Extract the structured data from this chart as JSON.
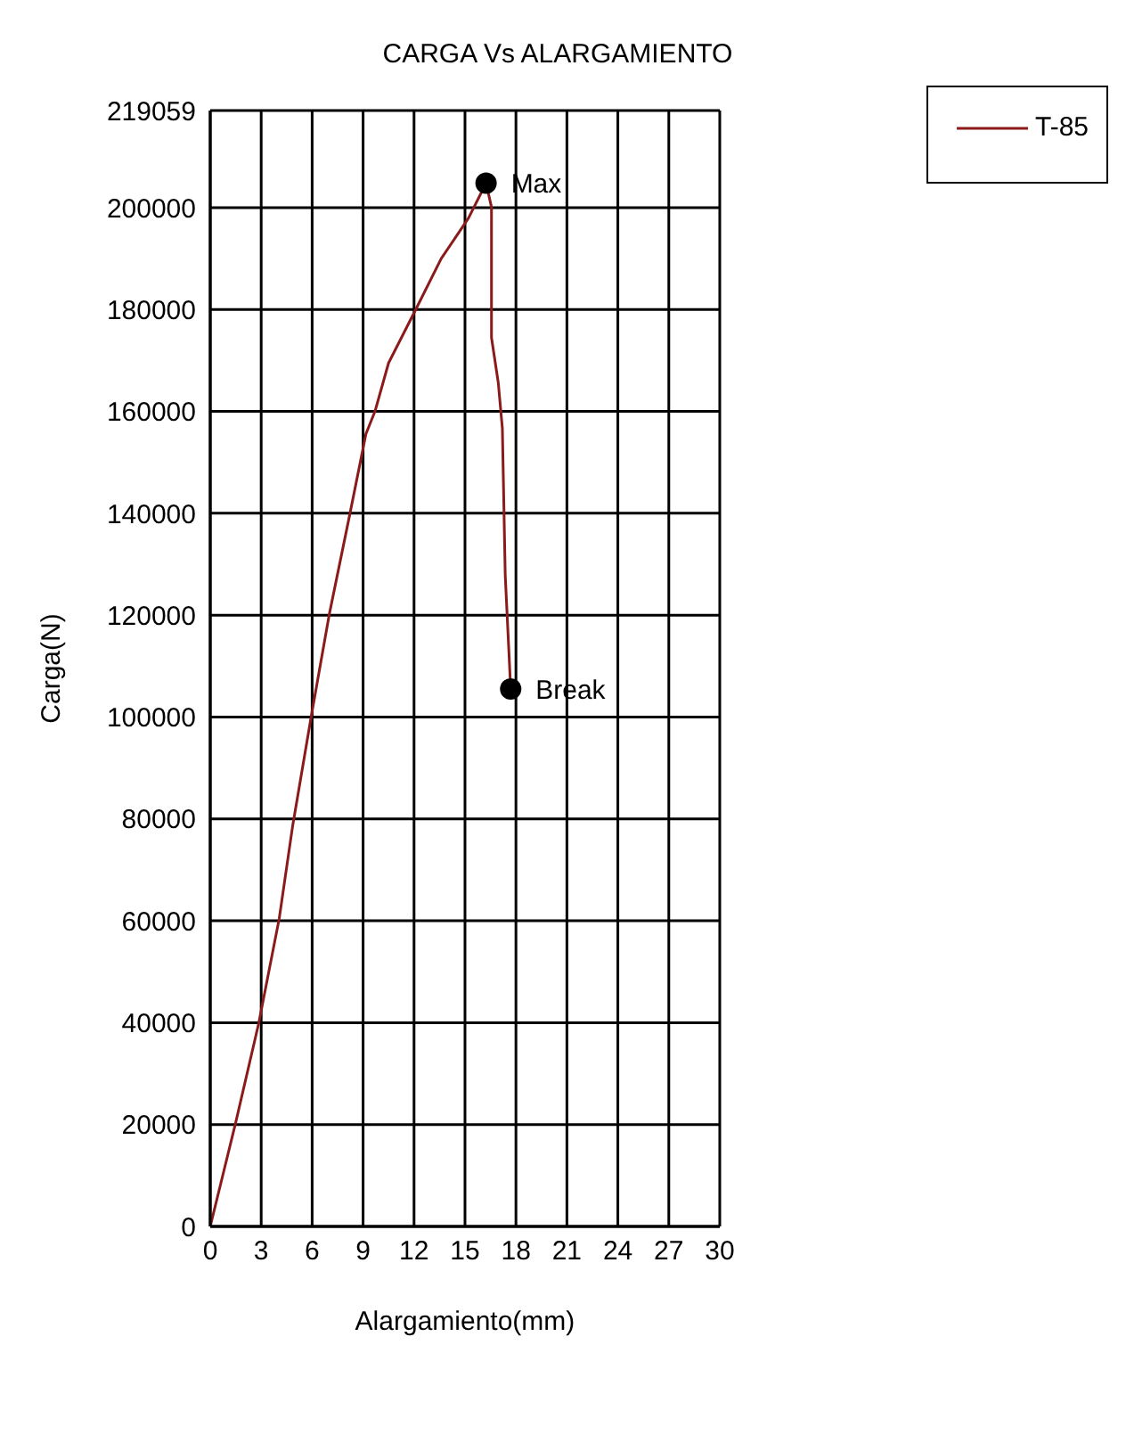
{
  "chart_data": {
    "type": "line",
    "title": "CARGA Vs ALARGAMIENTO",
    "xlabel": "Alargamiento(mm)",
    "ylabel": "Carga(N)",
    "xlim": [
      0,
      30
    ],
    "xticks": [
      0,
      3,
      6,
      9,
      12,
      15,
      18,
      21,
      24,
      27,
      30
    ],
    "ylim": [
      0,
      219059
    ],
    "yticks": [
      0,
      20000,
      40000,
      60000,
      80000,
      100000,
      120000,
      140000,
      160000,
      180000,
      200000,
      219059
    ],
    "grid": true,
    "legend": "top right",
    "marker": "none",
    "line_style": "solid",
    "series": [
      {
        "name": "T-85",
        "color": "#8b1a1a",
        "x": [
          0,
          1.5,
          2.85,
          4.06,
          4.86,
          5.94,
          7.0,
          8.23,
          9.17,
          9.7,
          10.5,
          12.1,
          13.6,
          15.2,
          16.24,
          16.56,
          16.56,
          16.96,
          17.2,
          17.37,
          17.69
        ],
        "values": [
          0,
          20400,
          39800,
          60400,
          78800,
          100000,
          120000,
          140000,
          155600,
          160000,
          169500,
          180000,
          190000,
          197900,
          204800,
          200100,
          174500,
          165600,
          156700,
          127800,
          105500
        ]
      }
    ],
    "annotations": [
      {
        "text": "Max",
        "x": 16.24,
        "y": 204800
      },
      {
        "text": "Break",
        "x": 17.69,
        "y": 105500
      }
    ]
  }
}
